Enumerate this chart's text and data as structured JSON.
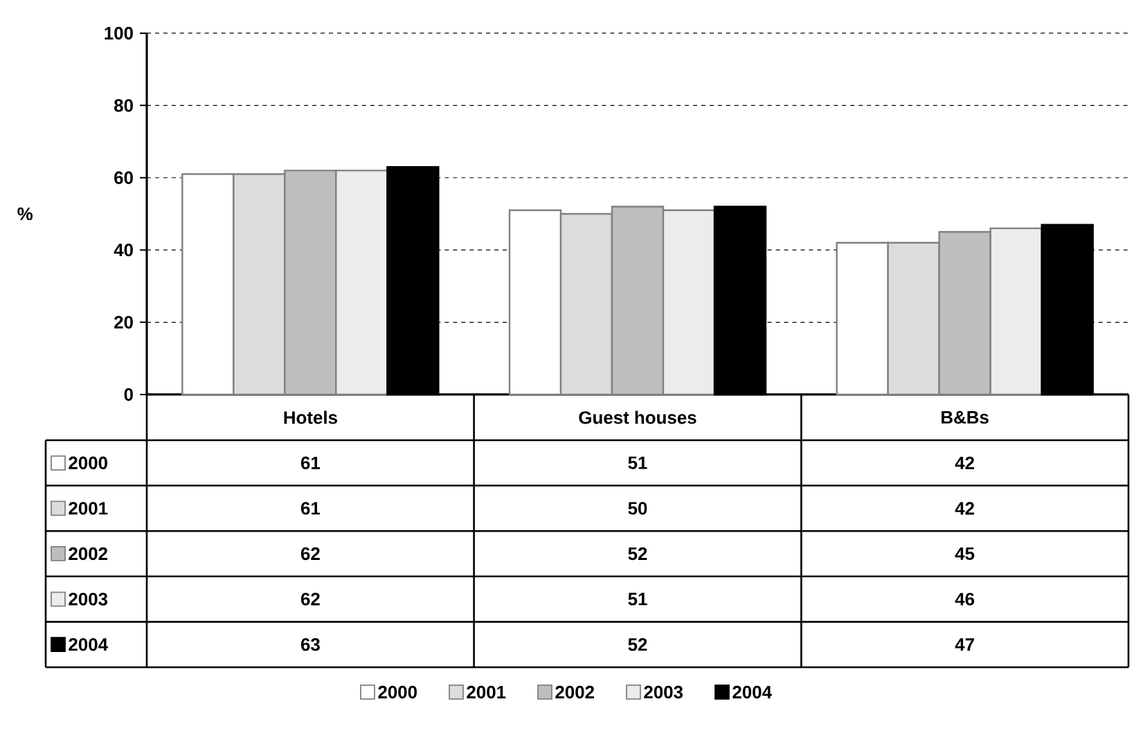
{
  "chart_data": {
    "type": "bar",
    "ylabel": "%",
    "categories": [
      "Hotels",
      "Guest houses",
      "B&Bs"
    ],
    "series": [
      {
        "name": "2000",
        "color": "#ffffff",
        "values": [
          61,
          51,
          42
        ]
      },
      {
        "name": "2001",
        "color": "#dcdcdc",
        "values": [
          61,
          50,
          42
        ]
      },
      {
        "name": "2002",
        "color": "#bebebe",
        "values": [
          62,
          52,
          45
        ]
      },
      {
        "name": "2003",
        "color": "#ececec",
        "values": [
          62,
          51,
          46
        ]
      },
      {
        "name": "2004",
        "color": "#000000",
        "values": [
          63,
          52,
          47
        ]
      }
    ],
    "ylim": [
      0,
      100
    ],
    "yticks": [
      0,
      20,
      40,
      60,
      80,
      100
    ],
    "grid": "y",
    "legend": "bottom",
    "data_labels": true
  }
}
